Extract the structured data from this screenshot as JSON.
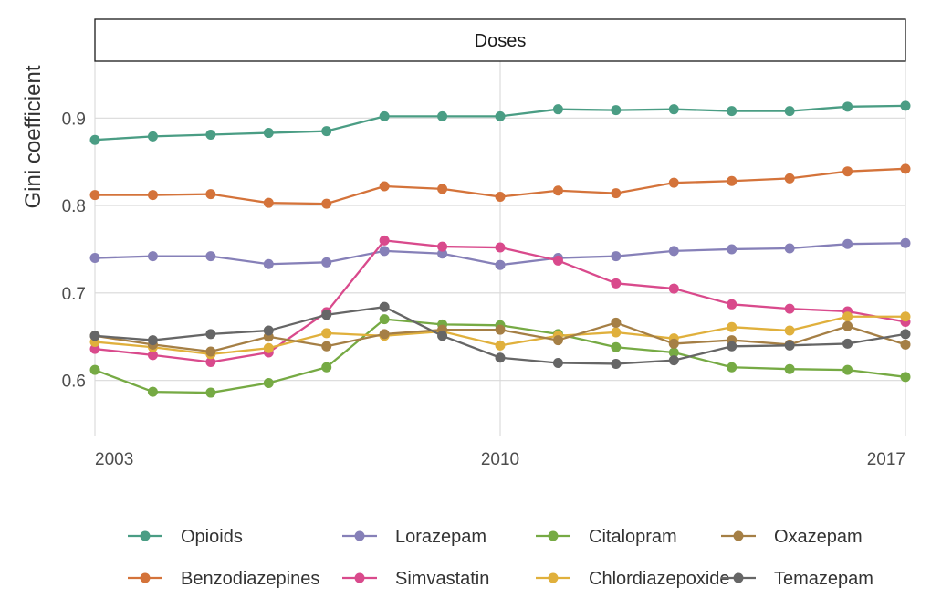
{
  "chart_data": {
    "type": "line",
    "facet_title": "Doses",
    "xlabel": "",
    "ylabel": "Gini coefficient",
    "xlim": [
      2003,
      2017
    ],
    "ylim": [
      0.537,
      0.965
    ],
    "x_ticks": [
      2003,
      2010,
      2017
    ],
    "y_ticks": [
      0.6,
      0.7,
      0.8,
      0.9
    ],
    "y_tick_labels": [
      "0.6",
      "0.7",
      "0.8",
      "0.9"
    ],
    "grid": true,
    "legend_position": "bottom",
    "x": [
      2003,
      2004,
      2005,
      2006,
      2007,
      2008,
      2009,
      2010,
      2011,
      2012,
      2013,
      2014,
      2015,
      2016,
      2017
    ],
    "series": [
      {
        "name": "Opioids",
        "color": "#4a9d84",
        "values": [
          0.875,
          0.879,
          0.881,
          0.883,
          0.885,
          0.902,
          0.902,
          0.902,
          0.91,
          0.909,
          0.91,
          0.908,
          0.908,
          0.913,
          0.914
        ]
      },
      {
        "name": "Benzodiazepines",
        "color": "#d4733a",
        "values": [
          0.812,
          0.812,
          0.813,
          0.803,
          0.802,
          0.822,
          0.819,
          0.81,
          0.817,
          0.814,
          0.826,
          0.828,
          0.831,
          0.839,
          0.842
        ]
      },
      {
        "name": "Lorazepam",
        "color": "#8680b8",
        "values": [
          0.74,
          0.742,
          0.742,
          0.733,
          0.735,
          0.748,
          0.745,
          0.732,
          0.74,
          0.742,
          0.748,
          0.75,
          0.751,
          0.756,
          0.757
        ]
      },
      {
        "name": "Simvastatin",
        "color": "#d94a8c",
        "values": [
          0.636,
          0.629,
          0.621,
          0.632,
          0.678,
          0.76,
          0.753,
          0.752,
          0.737,
          0.711,
          0.705,
          0.687,
          0.682,
          0.679,
          0.667
        ]
      },
      {
        "name": "Citalopram",
        "color": "#76aa44",
        "values": [
          0.612,
          0.587,
          0.586,
          0.597,
          0.615,
          0.67,
          0.664,
          0.663,
          0.653,
          0.638,
          0.632,
          0.615,
          0.613,
          0.612,
          0.604
        ]
      },
      {
        "name": "Chlordiazepoxide",
        "color": "#e0b03c",
        "values": [
          0.644,
          0.638,
          0.63,
          0.637,
          0.654,
          0.651,
          0.656,
          0.64,
          0.651,
          0.655,
          0.648,
          0.661,
          0.657,
          0.673,
          0.673
        ]
      },
      {
        "name": "Oxazepam",
        "color": "#a57f45",
        "values": [
          0.651,
          0.641,
          0.633,
          0.65,
          0.639,
          0.653,
          0.658,
          0.658,
          0.646,
          0.666,
          0.642,
          0.646,
          0.641,
          0.662,
          0.641
        ]
      },
      {
        "name": "Temazepam",
        "color": "#666666",
        "values": [
          0.651,
          0.646,
          0.653,
          0.657,
          0.675,
          0.684,
          0.651,
          0.626,
          0.62,
          0.619,
          0.623,
          0.639,
          0.64,
          0.642,
          0.653
        ]
      }
    ],
    "legend_order": [
      "Opioids",
      "Lorazepam",
      "Citalopram",
      "Oxazepam",
      "Benzodiazepines",
      "Simvastatin",
      "Chlordiazepoxide",
      "Temazepam"
    ]
  }
}
